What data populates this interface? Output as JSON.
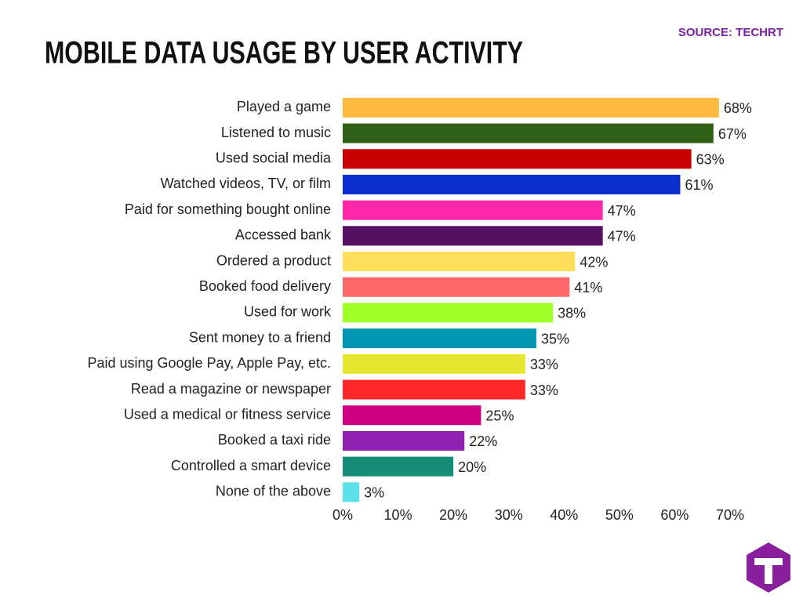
{
  "chart_data": {
    "type": "hbar",
    "title": "MOBILE DATA USAGE BY USER ACTIVITY",
    "source": "SOURCE: TECHRT",
    "categories": [
      "Played a game",
      "Listened to music",
      "Used social media",
      "Watched videos, TV, or film",
      "Paid for something bought online",
      "Accessed bank",
      "Ordered a product",
      "Booked food delivery",
      "Used for work",
      "Sent money to a friend",
      "Paid using Google Pay, Apple Pay, etc.",
      "Read a magazine or newspaper",
      "Used a medical or fitness service",
      "Booked a taxi ride",
      "Controlled a smart device",
      "None of the above"
    ],
    "values": [
      68,
      67,
      63,
      61,
      47,
      47,
      42,
      41,
      38,
      35,
      33,
      33,
      25,
      22,
      20,
      3
    ],
    "value_labels": [
      "68%",
      "67%",
      "63%",
      "61%",
      "47%",
      "47%",
      "42%",
      "41%",
      "38%",
      "35%",
      "33%",
      "33%",
      "25%",
      "22%",
      "20%",
      "3%"
    ],
    "colors": [
      "#ffb93f",
      "#2e6016",
      "#c90000",
      "#0a2ecf",
      "#ff28a8",
      "#561062",
      "#ffde5c",
      "#ff6868",
      "#a0ff28",
      "#0096b4",
      "#e6e630",
      "#ff2828",
      "#cc0080",
      "#9020b0",
      "#148c78",
      "#5ce0e8"
    ],
    "xlim": [
      0,
      70
    ],
    "xticks": [
      {
        "value": 0,
        "label": "0%"
      },
      {
        "value": 10,
        "label": "10%"
      },
      {
        "value": 20,
        "label": "20%"
      },
      {
        "value": 30,
        "label": "30%"
      },
      {
        "value": 40,
        "label": "40%"
      },
      {
        "value": 50,
        "label": "50%"
      },
      {
        "value": 60,
        "label": "60%"
      },
      {
        "value": 70,
        "label": "70%"
      }
    ],
    "grid": false
  }
}
